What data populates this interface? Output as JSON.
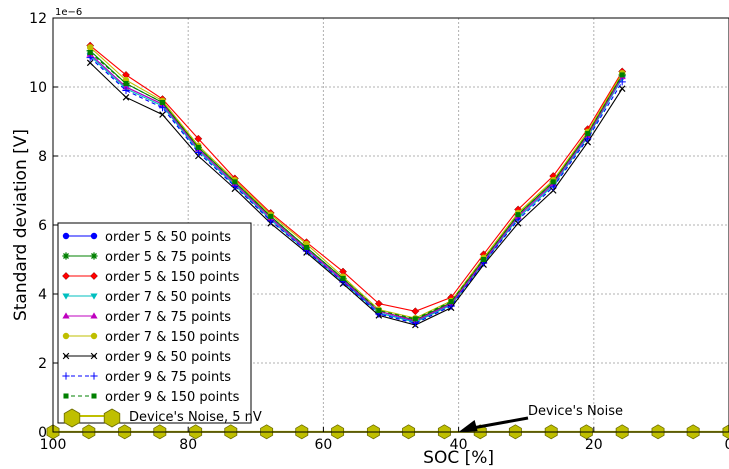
{
  "chart_data": {
    "type": "line",
    "xlabel": "SOC [%]",
    "ylabel": "Standard deviation [V]",
    "y_exponent_label": "1e−6",
    "x_ticks": [
      100,
      80,
      60,
      40,
      20,
      0
    ],
    "y_ticks": [
      0,
      2,
      4,
      6,
      8,
      10,
      12
    ],
    "xlim": [
      100,
      0
    ],
    "ylim": [
      0,
      12
    ],
    "x_reversed": true,
    "grid": true,
    "legend_position": "lower-left",
    "x": [
      94.5,
      89.2,
      83.8,
      78.5,
      73.1,
      67.8,
      62.5,
      57.1,
      51.8,
      46.4,
      41.1,
      36.3,
      31.2,
      26.0,
      20.9,
      15.8
    ],
    "series": [
      {
        "name": "order 5 & 50 points",
        "color": "#0000ff",
        "marker": "circle",
        "dash": "solid",
        "values": [
          10.95,
          10.0,
          9.5,
          8.2,
          7.2,
          6.2,
          5.3,
          4.4,
          3.45,
          3.2,
          3.7,
          4.95,
          6.25,
          7.2,
          8.6,
          10.3
        ]
      },
      {
        "name": "order 5 & 75 points",
        "color": "#008000",
        "marker": "star",
        "dash": "solid",
        "values": [
          11.05,
          10.1,
          9.55,
          8.25,
          7.25,
          6.25,
          5.35,
          4.45,
          3.5,
          3.25,
          3.75,
          5.0,
          6.3,
          7.25,
          8.65,
          10.35
        ]
      },
      {
        "name": "order 5 & 150 points",
        "color": "#ff0000",
        "marker": "diamond",
        "dash": "solid",
        "values": [
          11.2,
          10.35,
          9.65,
          8.5,
          7.35,
          6.35,
          5.5,
          4.65,
          3.72,
          3.5,
          3.9,
          5.15,
          6.45,
          7.42,
          8.78,
          10.45
        ]
      },
      {
        "name": "order 7 & 50 points",
        "color": "#00bfbf",
        "marker": "tri-down",
        "dash": "solid",
        "values": [
          10.9,
          9.95,
          9.45,
          8.15,
          7.15,
          6.15,
          5.25,
          4.35,
          3.45,
          3.18,
          3.68,
          4.9,
          6.2,
          7.15,
          8.55,
          10.25
        ]
      },
      {
        "name": "order 7 & 75 points",
        "color": "#bf00bf",
        "marker": "tri-up",
        "dash": "solid",
        "values": [
          10.95,
          10.0,
          9.5,
          8.2,
          7.2,
          6.2,
          5.3,
          4.4,
          3.5,
          3.22,
          3.72,
          4.95,
          6.25,
          7.2,
          8.6,
          10.3
        ]
      },
      {
        "name": "order 7 & 150 points",
        "color": "#bfbf00",
        "marker": "circle",
        "dash": "solid",
        "values": [
          11.15,
          10.2,
          9.6,
          8.3,
          7.3,
          6.3,
          5.45,
          4.5,
          3.55,
          3.3,
          3.8,
          5.05,
          6.35,
          7.3,
          8.7,
          10.4
        ]
      },
      {
        "name": "order 9 & 50 points",
        "color": "#000000",
        "marker": "x",
        "dash": "solid",
        "values": [
          10.7,
          9.7,
          9.2,
          8.0,
          7.05,
          6.05,
          5.2,
          4.3,
          3.38,
          3.1,
          3.6,
          4.85,
          6.05,
          7.0,
          8.4,
          9.95
        ]
      },
      {
        "name": "order 9 & 75 points",
        "color": "#0000ff",
        "marker": "plus",
        "dash": "dashed",
        "values": [
          10.85,
          9.9,
          9.4,
          8.1,
          7.12,
          6.12,
          5.25,
          4.35,
          3.42,
          3.15,
          3.65,
          4.9,
          6.15,
          7.1,
          8.5,
          10.15
        ]
      },
      {
        "name": "order 9 & 150 points",
        "color": "#008000",
        "marker": "square",
        "dash": "dashed",
        "values": [
          11.0,
          10.1,
          9.55,
          8.25,
          7.25,
          6.25,
          5.35,
          4.45,
          3.52,
          3.28,
          3.78,
          5.0,
          6.3,
          7.25,
          8.65,
          10.35
        ]
      }
    ],
    "noise_line": {
      "name": "Device's Noise, 5 nV",
      "value": 0.005,
      "color": "#bfbf00",
      "marker": "hexagon",
      "x": [
        100,
        94.7,
        89.4,
        84.2,
        78.9,
        73.7,
        68.4,
        63.2,
        57.9,
        52.6,
        47.4,
        42.1,
        36.8,
        31.6,
        26.3,
        21.1,
        15.8,
        10.5,
        5.3,
        0
      ]
    },
    "annotation": {
      "text": "Device's Noise",
      "points_to_x": 40,
      "points_to_y": 0
    }
  }
}
